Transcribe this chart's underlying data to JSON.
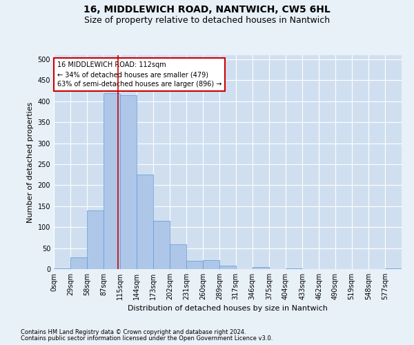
{
  "title": "16, MIDDLEWICH ROAD, NANTWICH, CW5 6HL",
  "subtitle": "Size of property relative to detached houses in Nantwich",
  "xlabel": "Distribution of detached houses by size in Nantwich",
  "ylabel": "Number of detached properties",
  "footnote1": "Contains HM Land Registry data © Crown copyright and database right 2024.",
  "footnote2": "Contains public sector information licensed under the Open Government Licence v3.0.",
  "bin_labels": [
    "0sqm",
    "29sqm",
    "58sqm",
    "87sqm",
    "115sqm",
    "144sqm",
    "173sqm",
    "202sqm",
    "231sqm",
    "260sqm",
    "289sqm",
    "317sqm",
    "346sqm",
    "375sqm",
    "404sqm",
    "433sqm",
    "462sqm",
    "490sqm",
    "519sqm",
    "548sqm",
    "577sqm"
  ],
  "bar_values": [
    2,
    28,
    140,
    420,
    415,
    225,
    115,
    60,
    20,
    22,
    8,
    0,
    5,
    0,
    2,
    0,
    0,
    0,
    0,
    0,
    2
  ],
  "bin_edges": [
    0,
    29,
    58,
    87,
    115,
    144,
    173,
    202,
    231,
    260,
    289,
    317,
    346,
    375,
    404,
    433,
    462,
    490,
    519,
    548,
    577,
    606
  ],
  "bar_color": "#aec6e8",
  "bar_edge_color": "#5b9bd5",
  "property_size": 112,
  "vline_color": "#cc0000",
  "annotation_text": "16 MIDDLEWICH ROAD: 112sqm\n← 34% of detached houses are smaller (479)\n63% of semi-detached houses are larger (896) →",
  "annotation_box_color": "#ffffff",
  "annotation_box_edge": "#cc0000",
  "ylim": [
    0,
    510
  ],
  "yticks": [
    0,
    50,
    100,
    150,
    200,
    250,
    300,
    350,
    400,
    450,
    500
  ],
  "background_color": "#e8f0f8",
  "plot_background": "#d0dff0",
  "grid_color": "#ffffff",
  "title_fontsize": 10,
  "subtitle_fontsize": 9,
  "axis_fontsize": 8,
  "tick_fontsize": 7,
  "footnote_fontsize": 6
}
